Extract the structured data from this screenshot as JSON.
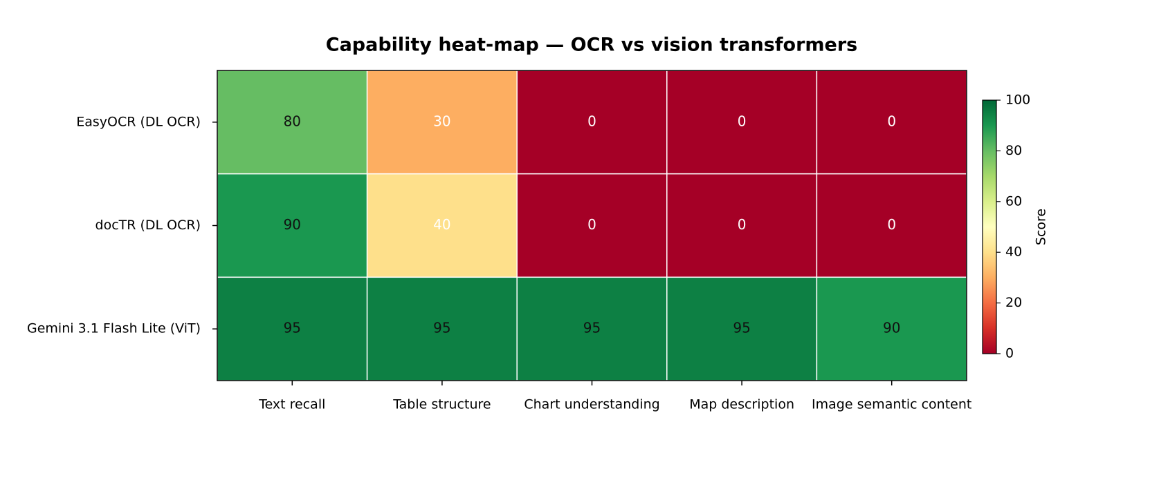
{
  "chart_data": {
    "type": "heatmap",
    "title": "Capability heat-map — OCR vs vision transformers",
    "categories": [
      "Text recall",
      "Table structure",
      "Chart understanding",
      "Map description",
      "Image semantic content"
    ],
    "rows": [
      "EasyOCR (DL OCR)",
      "docTR (DL OCR)",
      "Gemini 3.1 Flash Lite (ViT)"
    ],
    "values": [
      [
        80,
        30,
        0,
        0,
        0
      ],
      [
        90,
        40,
        0,
        0,
        0
      ],
      [
        95,
        95,
        95,
        95,
        90
      ]
    ],
    "colorscale": [
      "#a50026",
      "#d73027",
      "#f46d43",
      "#fdae61",
      "#fee08b",
      "#ffffbf",
      "#d9ef8b",
      "#a6d96a",
      "#66bd63",
      "#1a9850",
      "#006837"
    ],
    "colorbar_label": "Score",
    "clim": [
      0,
      100
    ],
    "cticks": [
      0,
      20,
      40,
      60,
      80,
      100
    ]
  }
}
